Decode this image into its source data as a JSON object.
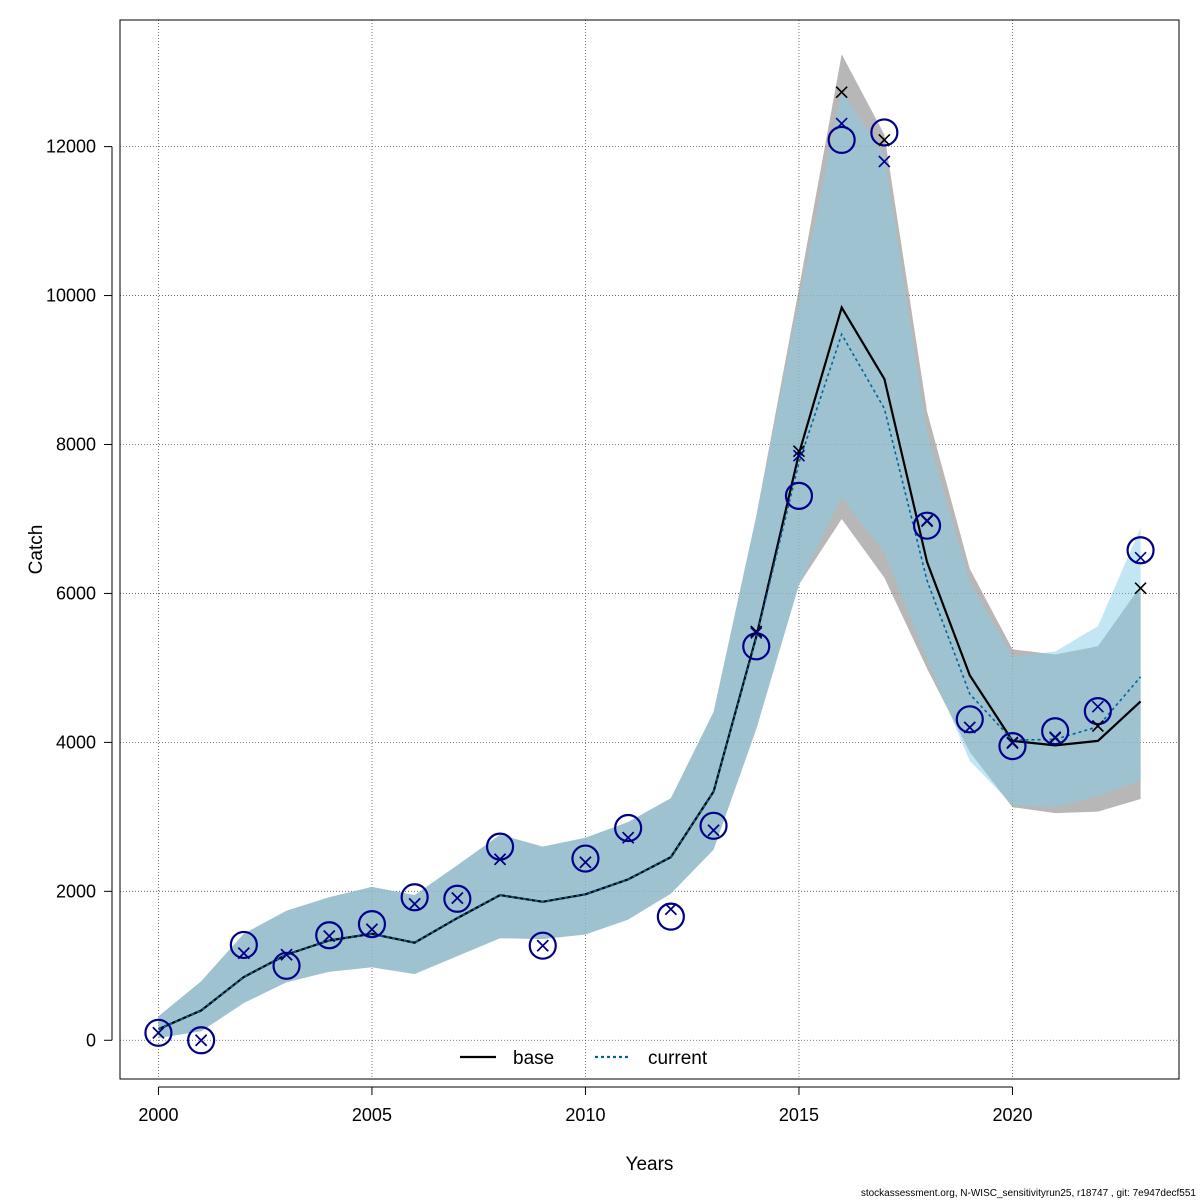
{
  "chart_data": {
    "type": "line",
    "xlabel": "Years",
    "ylabel": "Catch",
    "xlim": [
      1999.1,
      2023.9
    ],
    "ylim": [
      -520,
      13700
    ],
    "x_ticks": [
      2000,
      2005,
      2010,
      2015,
      2020
    ],
    "y_ticks": [
      0,
      2000,
      4000,
      6000,
      8000,
      10000,
      12000
    ],
    "grid": true,
    "legend_position": "bottom-center",
    "years": [
      2000,
      2001,
      2002,
      2003,
      2004,
      2005,
      2006,
      2007,
      2008,
      2009,
      2010,
      2011,
      2012,
      2013,
      2014,
      2015,
      2016,
      2017,
      2018,
      2019,
      2020,
      2021,
      2022,
      2023
    ],
    "observed": [
      100,
      0,
      1280,
      1000,
      1410,
      1560,
      1920,
      1900,
      2600,
      1270,
      2440,
      2850,
      1660,
      2880,
      5290,
      7310,
      12090,
      12190,
      6910,
      4310,
      3950,
      4150,
      4420,
      6580
    ],
    "series": [
      {
        "name": "base",
        "color": "#000000",
        "line_style": "solid",
        "band_color": "#999999",
        "fit": [
          150,
          400,
          850,
          1150,
          1340,
          1430,
          1310,
          1640,
          1950,
          1860,
          1960,
          2160,
          2460,
          3340,
          5420,
          7880,
          9840,
          8880,
          6420,
          4900,
          4020,
          3960,
          4020,
          4550
        ],
        "lower": [
          30,
          120,
          500,
          780,
          920,
          980,
          890,
          1130,
          1370,
          1360,
          1420,
          1620,
          1970,
          2560,
          4180,
          6120,
          7000,
          6210,
          4990,
          3870,
          3130,
          3050,
          3070,
          3240
        ],
        "upper": [
          320,
          790,
          1430,
          1740,
          1920,
          2060,
          1950,
          2350,
          2760,
          2600,
          2720,
          2930,
          3250,
          4410,
          7040,
          10100,
          13240,
          12160,
          8440,
          6330,
          5250,
          5180,
          5290,
          6100
        ],
        "predicted": [
          100,
          0,
          1170,
          1150,
          1400,
          1490,
          1830,
          1910,
          2430,
          1270,
          2390,
          2720,
          1760,
          2820,
          5490,
          7910,
          12730,
          12090,
          6970,
          4200,
          4000,
          4060,
          4220,
          6070
        ]
      },
      {
        "name": "current",
        "color": "#006699",
        "line_style": "dotted",
        "band_color": "#87CEEB",
        "fit": [
          150,
          400,
          850,
          1150,
          1340,
          1430,
          1310,
          1640,
          1950,
          1860,
          1960,
          2160,
          2460,
          3340,
          5400,
          7760,
          9480,
          8480,
          6170,
          4650,
          4030,
          4040,
          4210,
          4880
        ],
        "lower": [
          30,
          120,
          500,
          780,
          920,
          980,
          890,
          1130,
          1370,
          1360,
          1420,
          1620,
          1970,
          2560,
          4180,
          6120,
          7290,
          6540,
          5110,
          3750,
          3160,
          3130,
          3280,
          3490
        ],
        "upper": [
          320,
          790,
          1430,
          1740,
          1920,
          2060,
          1950,
          2350,
          2760,
          2600,
          2720,
          2930,
          3250,
          4410,
          7040,
          9930,
          12750,
          11880,
          8140,
          6150,
          5150,
          5220,
          5560,
          6880
        ],
        "predicted": [
          100,
          0,
          1170,
          1150,
          1400,
          1490,
          1830,
          1910,
          2430,
          1270,
          2390,
          2720,
          1760,
          2820,
          5470,
          7850,
          12310,
          11800,
          6980,
          4200,
          3990,
          4070,
          4480,
          6480
        ]
      }
    ]
  },
  "footer": "stockassessment.org, N-WISC_sensitivityrun25, r18747 , git: 7e947decf551"
}
